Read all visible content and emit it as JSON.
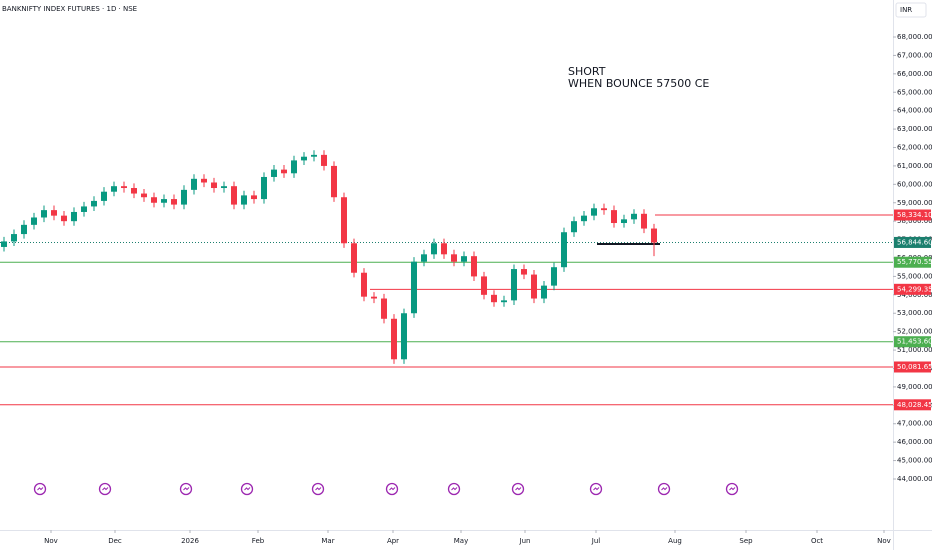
{
  "chart_data": {
    "type": "candlestick",
    "title": "BANKNIFTY INDEX FUTURES · 1D · NSE",
    "currency": "INR",
    "annotation": [
      "SHORT",
      "WHEN BOUNCE 57500 CE"
    ],
    "up_color": "#089981",
    "down_color": "#f23645",
    "candles": [
      [
        56600,
        57150,
        56350,
        56900
      ],
      [
        56900,
        57550,
        56650,
        57300
      ],
      [
        57300,
        58050,
        57050,
        57800
      ],
      [
        57800,
        58450,
        57550,
        58200
      ],
      [
        58200,
        58850,
        57950,
        58600
      ],
      [
        58600,
        58850,
        58050,
        58300
      ],
      [
        58300,
        58550,
        57750,
        58000
      ],
      [
        58000,
        58750,
        57750,
        58500
      ],
      [
        58500,
        59050,
        58250,
        58800
      ],
      [
        58800,
        59350,
        58550,
        59100
      ],
      [
        59100,
        59850,
        58850,
        59600
      ],
      [
        59600,
        60150,
        59350,
        59900
      ],
      [
        59900,
        60150,
        59550,
        59800
      ],
      [
        59800,
        60050,
        59250,
        59500
      ],
      [
        59500,
        59750,
        59050,
        59300
      ],
      [
        59300,
        59550,
        58750,
        59000
      ],
      [
        59000,
        59450,
        58750,
        59200
      ],
      [
        59200,
        59450,
        58650,
        58900
      ],
      [
        58900,
        59950,
        58650,
        59700
      ],
      [
        59700,
        60550,
        59450,
        60300
      ],
      [
        60300,
        60550,
        59850,
        60100
      ],
      [
        60100,
        60350,
        59550,
        59800
      ],
      [
        59800,
        60150,
        59550,
        59900
      ],
      [
        59900,
        60150,
        58650,
        58900
      ],
      [
        58900,
        59650,
        58650,
        59400
      ],
      [
        59400,
        59650,
        58950,
        59200
      ],
      [
        59200,
        60650,
        58950,
        60400
      ],
      [
        60400,
        61050,
        60150,
        60800
      ],
      [
        60800,
        61050,
        60350,
        60600
      ],
      [
        60600,
        61550,
        60350,
        61300
      ],
      [
        61300,
        61750,
        61050,
        61500
      ],
      [
        61500,
        61850,
        61250,
        61600
      ],
      [
        61600,
        61850,
        60750,
        61000
      ],
      [
        61000,
        61250,
        59050,
        59300
      ],
      [
        59300,
        59550,
        56550,
        56800
      ],
      [
        56800,
        57050,
        54950,
        55200
      ],
      [
        55200,
        55450,
        53650,
        53900
      ],
      [
        53900,
        54150,
        53550,
        53800
      ],
      [
        53800,
        54050,
        52450,
        52700
      ],
      [
        52700,
        52950,
        50250,
        50500
      ],
      [
        50500,
        53250,
        50250,
        53000
      ],
      [
        53000,
        56050,
        52750,
        55800
      ],
      [
        55800,
        56450,
        55550,
        56200
      ],
      [
        56200,
        57050,
        55950,
        56800
      ],
      [
        56800,
        57050,
        55950,
        56200
      ],
      [
        56200,
        56450,
        55550,
        55800
      ],
      [
        55800,
        56350,
        55550,
        56100
      ],
      [
        56100,
        56350,
        54750,
        55000
      ],
      [
        55000,
        55250,
        53750,
        54000
      ],
      [
        54000,
        54250,
        53350,
        53600
      ],
      [
        53600,
        53950,
        53350,
        53700
      ],
      [
        53700,
        55650,
        53450,
        55400
      ],
      [
        55400,
        55650,
        54850,
        55100
      ],
      [
        55100,
        55350,
        53550,
        53800
      ],
      [
        53800,
        54750,
        53550,
        54500
      ],
      [
        54500,
        55750,
        54250,
        55500
      ],
      [
        55500,
        57650,
        55250,
        57400
      ],
      [
        57400,
        58250,
        57150,
        58000
      ],
      [
        58000,
        58550,
        57750,
        58300
      ],
      [
        58300,
        58950,
        58050,
        58700
      ],
      [
        58700,
        58950,
        58350,
        58600
      ],
      [
        58600,
        58850,
        57650,
        57900
      ],
      [
        57900,
        58350,
        57650,
        58100
      ],
      [
        58100,
        58650,
        57850,
        58400
      ],
      [
        58400,
        58650,
        57350,
        57600
      ],
      [
        57600,
        57850,
        56100,
        56840
      ]
    ],
    "xlim": [
      -0.4,
      88.9
    ],
    "xticks": [
      {
        "value": 4.7,
        "label": "Nov"
      },
      {
        "value": 11.1,
        "label": "Dec"
      },
      {
        "value": 18.6,
        "label": "2026"
      },
      {
        "value": 25.4,
        "label": "Feb"
      },
      {
        "value": 32.4,
        "label": "Mar"
      },
      {
        "value": 38.9,
        "label": "Apr"
      },
      {
        "value": 45.7,
        "label": "May"
      },
      {
        "value": 52.1,
        "label": "Jun"
      },
      {
        "value": 59.2,
        "label": "Jul"
      },
      {
        "value": 67.1,
        "label": "Aug"
      },
      {
        "value": 74.2,
        "label": "Sep"
      },
      {
        "value": 81.3,
        "label": "Oct"
      },
      {
        "value": 88.0,
        "label": "Nov"
      }
    ],
    "ylim": [
      41230,
      70010
    ],
    "yticks": [
      {
        "value": 44000,
        "label": "44,000.00"
      },
      {
        "value": 45000,
        "label": "45,000.00"
      },
      {
        "value": 46000,
        "label": "46,000.00"
      },
      {
        "value": 47000,
        "label": "47,000.00"
      },
      {
        "value": 48000,
        "label": "48,000.00"
      },
      {
        "value": 49000,
        "label": "49,000.00"
      },
      {
        "value": 50000,
        "label": "50,000.00"
      },
      {
        "value": 51000,
        "label": "51,000.00"
      },
      {
        "value": 52000,
        "label": "52,000.00"
      },
      {
        "value": 53000,
        "label": "53,000.00"
      },
      {
        "value": 54000,
        "label": "54,000.00"
      },
      {
        "value": 55000,
        "label": "55,000.00"
      },
      {
        "value": 56000,
        "label": "56,000.00"
      },
      {
        "value": 57000,
        "label": "57,000.00"
      },
      {
        "value": 58000,
        "label": "58,000.00"
      },
      {
        "value": 59000,
        "label": "59,000.00"
      },
      {
        "value": 60000,
        "label": "60,000.00"
      },
      {
        "value": 61000,
        "label": "61,000.00"
      },
      {
        "value": 62000,
        "label": "62,000.00"
      },
      {
        "value": 63000,
        "label": "63,000.00"
      },
      {
        "value": 64000,
        "label": "64,000.00"
      },
      {
        "value": 65000,
        "label": "65,000.00"
      },
      {
        "value": 66000,
        "label": "66,000.00"
      },
      {
        "value": 67000,
        "label": "67,000.00"
      },
      {
        "value": 68000,
        "label": "68,000.00"
      }
    ],
    "levels": [
      {
        "value": 58334.1,
        "label": "58,334.10",
        "color": "#f23645",
        "from": 65.1
      },
      {
        "value": 55770.55,
        "label": "55,770.55",
        "color": "#4caf50"
      },
      {
        "value": 54299.35,
        "label": "54,299.35",
        "color": "#f23645",
        "from": 36.6
      },
      {
        "value": 51453.6,
        "label": "51,453.60",
        "color": "#4caf50"
      },
      {
        "value": 50081.65,
        "label": "50,081.65",
        "color": "#f23645"
      },
      {
        "value": 48028.45,
        "label": "48,028.45",
        "color": "#f23645"
      }
    ],
    "last_price": {
      "value": 56844.6,
      "label": "56,844.60",
      "color": "#1b7f6e"
    }
  }
}
